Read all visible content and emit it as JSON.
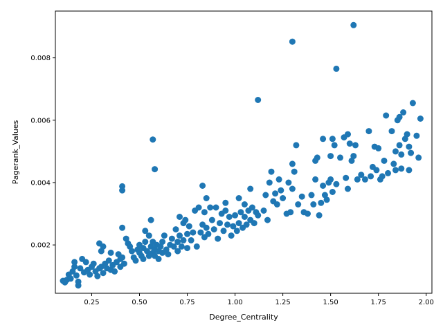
{
  "chart_data": {
    "type": "scatter",
    "title": "",
    "xlabel": "Degree_Centrality",
    "ylabel": "Pagerank_Values",
    "xlim": [
      0.06,
      2.03
    ],
    "ylim": [
      0.00045,
      0.0095
    ],
    "xticks": [
      0.25,
      0.5,
      0.75,
      1.0,
      1.25,
      1.5,
      1.75,
      2.0
    ],
    "xtick_labels": [
      "0.25",
      "0.50",
      "0.75",
      "1.00",
      "1.25",
      "1.50",
      "1.75",
      "2.00"
    ],
    "yticks": [
      0.002,
      0.004,
      0.006,
      0.008
    ],
    "ytick_labels": [
      "0.002",
      "0.004",
      "0.006",
      "0.008"
    ],
    "grid": false,
    "legend": "none",
    "marker_color": "#1f77b4",
    "series": [
      {
        "points": [
          [
            0.1,
            0.00085
          ],
          [
            0.11,
            0.0008
          ],
          [
            0.12,
            0.00088
          ],
          [
            0.13,
            0.00105
          ],
          [
            0.14,
            0.00092
          ],
          [
            0.15,
            0.00115
          ],
          [
            0.16,
            0.0013
          ],
          [
            0.16,
            0.00145
          ],
          [
            0.17,
            0.00102
          ],
          [
            0.18,
            0.0007
          ],
          [
            0.18,
            0.00082
          ],
          [
            0.19,
            0.00125
          ],
          [
            0.2,
            0.00155
          ],
          [
            0.21,
            0.00112
          ],
          [
            0.22,
            0.00145
          ],
          [
            0.23,
            0.0012
          ],
          [
            0.24,
            0.00105
          ],
          [
            0.25,
            0.0013
          ],
          [
            0.26,
            0.0014
          ],
          [
            0.27,
            0.00115
          ],
          [
            0.28,
            0.001
          ],
          [
            0.29,
            0.00125
          ],
          [
            0.3,
            0.0013
          ],
          [
            0.3,
            0.0018
          ],
          [
            0.29,
            0.00205
          ],
          [
            0.31,
            0.00195
          ],
          [
            0.31,
            0.0011
          ],
          [
            0.32,
            0.0014
          ],
          [
            0.33,
            0.00125
          ],
          [
            0.34,
            0.0015
          ],
          [
            0.35,
            0.00175
          ],
          [
            0.35,
            0.0012
          ],
          [
            0.36,
            0.00135
          ],
          [
            0.37,
            0.00115
          ],
          [
            0.38,
            0.00145
          ],
          [
            0.39,
            0.0017
          ],
          [
            0.4,
            0.0013
          ],
          [
            0.4,
            0.00155
          ],
          [
            0.41,
            0.0016
          ],
          [
            0.42,
            0.0014
          ],
          [
            0.41,
            0.00255
          ],
          [
            0.41,
            0.00375
          ],
          [
            0.41,
            0.00388
          ],
          [
            0.43,
            0.0022
          ],
          [
            0.44,
            0.00205
          ],
          [
            0.45,
            0.00195
          ],
          [
            0.46,
            0.0018
          ],
          [
            0.47,
            0.0016
          ],
          [
            0.48,
            0.0015
          ],
          [
            0.49,
            0.00185
          ],
          [
            0.5,
            0.00175
          ],
          [
            0.5,
            0.002
          ],
          [
            0.51,
            0.00165
          ],
          [
            0.52,
            0.0019
          ],
          [
            0.52,
            0.00155
          ],
          [
            0.53,
            0.0021
          ],
          [
            0.53,
            0.00245
          ],
          [
            0.54,
            0.0018
          ],
          [
            0.55,
            0.00165
          ],
          [
            0.55,
            0.0023
          ],
          [
            0.56,
            0.00195
          ],
          [
            0.56,
            0.0028
          ],
          [
            0.57,
            0.00175
          ],
          [
            0.57,
            0.0021
          ],
          [
            0.58,
            0.00165
          ],
          [
            0.58,
            0.00185
          ],
          [
            0.59,
            0.002
          ],
          [
            0.6,
            0.0018
          ],
          [
            0.6,
            0.00155
          ],
          [
            0.61,
            0.00195
          ],
          [
            0.62,
            0.00175
          ],
          [
            0.62,
            0.0021
          ],
          [
            0.63,
            0.0023
          ],
          [
            0.64,
            0.00185
          ],
          [
            0.65,
            0.0017
          ],
          [
            0.66,
            0.002
          ],
          [
            0.67,
            0.0022
          ],
          [
            0.68,
            0.00195
          ],
          [
            0.69,
            0.0025
          ],
          [
            0.7,
            0.0018
          ],
          [
            0.7,
            0.0021
          ],
          [
            0.71,
            0.0023
          ],
          [
            0.71,
            0.0029
          ],
          [
            0.72,
            0.00195
          ],
          [
            0.73,
            0.0027
          ],
          [
            0.73,
            0.00215
          ],
          [
            0.74,
            0.0028
          ],
          [
            0.75,
            0.0019
          ],
          [
            0.75,
            0.00235
          ],
          [
            0.76,
            0.0026
          ],
          [
            0.77,
            0.00215
          ],
          [
            0.78,
            0.0024
          ],
          [
            0.79,
            0.0031
          ],
          [
            0.8,
            0.00195
          ],
          [
            0.81,
            0.0032
          ],
          [
            0.82,
            0.0024
          ],
          [
            0.83,
            0.00265
          ],
          [
            0.83,
            0.0039
          ],
          [
            0.84,
            0.00225
          ],
          [
            0.84,
            0.00305
          ],
          [
            0.85,
            0.0035
          ],
          [
            0.85,
            0.00255
          ],
          [
            0.86,
            0.00235
          ],
          [
            0.87,
            0.0032
          ],
          [
            0.88,
            0.0028
          ],
          [
            0.89,
            0.0025
          ],
          [
            0.9,
            0.0032
          ],
          [
            0.91,
            0.0022
          ],
          [
            0.92,
            0.0027
          ],
          [
            0.93,
            0.003
          ],
          [
            0.94,
            0.00245
          ],
          [
            0.95,
            0.00335
          ],
          [
            0.95,
            0.0031
          ],
          [
            0.96,
            0.00265
          ],
          [
            0.97,
            0.0029
          ],
          [
            0.98,
            0.0023
          ],
          [
            0.99,
            0.0026
          ],
          [
            1.0,
            0.00295
          ],
          [
            1.01,
            0.00245
          ],
          [
            1.02,
            0.0035
          ],
          [
            1.02,
            0.0027
          ],
          [
            1.03,
            0.00305
          ],
          [
            1.04,
            0.00255
          ],
          [
            1.05,
            0.0029
          ],
          [
            1.05,
            0.0033
          ],
          [
            1.06,
            0.00265
          ],
          [
            1.07,
            0.0031
          ],
          [
            1.08,
            0.0028
          ],
          [
            1.08,
            0.0038
          ],
          [
            1.09,
            0.0032
          ],
          [
            1.1,
            0.0027
          ],
          [
            1.11,
            0.00305
          ],
          [
            1.12,
            0.00295
          ],
          [
            1.12,
            0.00665
          ],
          [
            1.15,
            0.0031
          ],
          [
            1.16,
            0.0036
          ],
          [
            1.17,
            0.0028
          ],
          [
            1.18,
            0.004
          ],
          [
            1.19,
            0.00435
          ],
          [
            1.2,
            0.0034
          ],
          [
            1.21,
            0.00365
          ],
          [
            1.22,
            0.0033
          ],
          [
            1.23,
            0.0041
          ],
          [
            1.24,
            0.00375
          ],
          [
            1.25,
            0.0035
          ],
          [
            1.27,
            0.003
          ],
          [
            1.28,
            0.004
          ],
          [
            1.29,
            0.00305
          ],
          [
            1.3,
            0.0046
          ],
          [
            1.3,
            0.0038
          ],
          [
            1.3,
            0.00852
          ],
          [
            1.31,
            0.00435
          ],
          [
            1.32,
            0.0052
          ],
          [
            1.33,
            0.0033
          ],
          [
            1.35,
            0.00355
          ],
          [
            1.36,
            0.00305
          ],
          [
            1.38,
            0.003
          ],
          [
            1.4,
            0.0036
          ],
          [
            1.41,
            0.0033
          ],
          [
            1.42,
            0.0041
          ],
          [
            1.42,
            0.0047
          ],
          [
            1.43,
            0.0048
          ],
          [
            1.44,
            0.00295
          ],
          [
            1.45,
            0.00335
          ],
          [
            1.46,
            0.0039
          ],
          [
            1.46,
            0.0054
          ],
          [
            1.47,
            0.0036
          ],
          [
            1.48,
            0.00345
          ],
          [
            1.49,
            0.004
          ],
          [
            1.5,
            0.00485
          ],
          [
            1.5,
            0.0041
          ],
          [
            1.51,
            0.0037
          ],
          [
            1.51,
            0.0054
          ],
          [
            1.52,
            0.0052
          ],
          [
            1.53,
            0.00395
          ],
          [
            1.53,
            0.00765
          ],
          [
            1.55,
            0.0048
          ],
          [
            1.57,
            0.00545
          ],
          [
            1.58,
            0.00415
          ],
          [
            1.59,
            0.0038
          ],
          [
            1.59,
            0.00555
          ],
          [
            1.6,
            0.00525
          ],
          [
            1.61,
            0.0047
          ],
          [
            1.62,
            0.00485
          ],
          [
            1.62,
            0.00905
          ],
          [
            1.63,
            0.0052
          ],
          [
            1.64,
            0.0041
          ],
          [
            1.66,
            0.00425
          ],
          [
            1.68,
            0.0041
          ],
          [
            1.7,
            0.00565
          ],
          [
            1.71,
            0.0042
          ],
          [
            1.72,
            0.0045
          ],
          [
            1.73,
            0.00515
          ],
          [
            1.74,
            0.0044
          ],
          [
            1.75,
            0.0051
          ],
          [
            1.76,
            0.0041
          ],
          [
            1.77,
            0.0042
          ],
          [
            1.78,
            0.0047
          ],
          [
            1.79,
            0.00615
          ],
          [
            1.8,
            0.0043
          ],
          [
            1.82,
            0.00565
          ],
          [
            1.83,
            0.0046
          ],
          [
            1.84,
            0.005
          ],
          [
            1.84,
            0.0044
          ],
          [
            1.85,
            0.006
          ],
          [
            1.86,
            0.0061
          ],
          [
            1.86,
            0.0052
          ],
          [
            1.87,
            0.00445
          ],
          [
            1.87,
            0.0049
          ],
          [
            1.88,
            0.00625
          ],
          [
            1.89,
            0.0054
          ],
          [
            1.9,
            0.00555
          ],
          [
            1.91,
            0.0044
          ],
          [
            1.91,
            0.00515
          ],
          [
            1.92,
            0.00495
          ],
          [
            1.93,
            0.00655
          ],
          [
            1.95,
            0.0055
          ],
          [
            1.96,
            0.0048
          ],
          [
            1.97,
            0.00605
          ],
          [
            0.57,
            0.00538
          ],
          [
            0.58,
            0.00443
          ]
        ]
      }
    ]
  }
}
